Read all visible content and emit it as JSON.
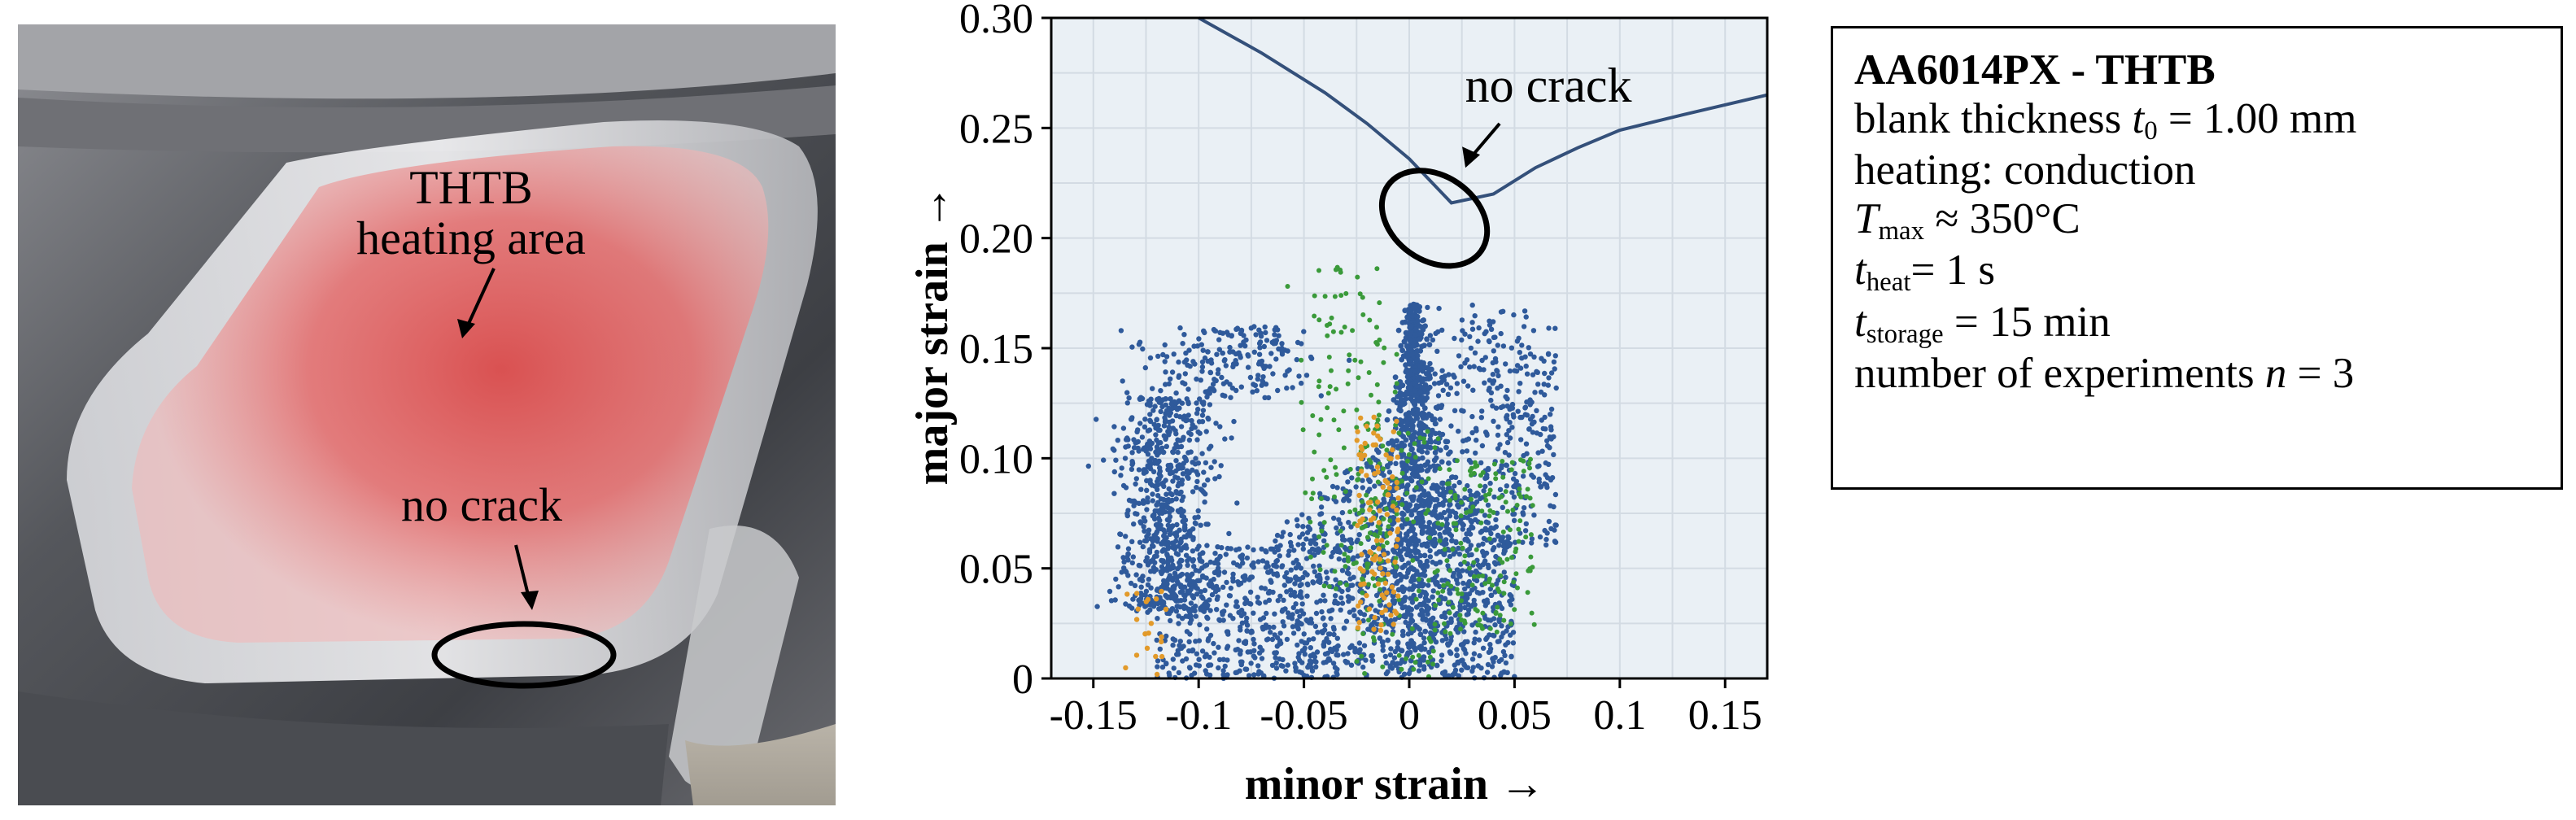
{
  "photo": {
    "heating_label_line1": "THTB",
    "heating_label_line2": "heating area",
    "crack_label": "no crack"
  },
  "chart_data": {
    "type": "scatter",
    "xlabel": "minor strain →",
    "ylabel": "major strain →",
    "xlim": [
      -0.17,
      0.17
    ],
    "ylim": [
      0,
      0.3
    ],
    "x_ticks": [
      "-0.15",
      "-0.1",
      "-0.05",
      "0",
      "0.05",
      "0.1",
      "0.15"
    ],
    "y_ticks": [
      "0",
      "0.05",
      "0.10",
      "0.15",
      "0.20",
      "0.25",
      "0.30"
    ],
    "grid": true,
    "forming_limit_curve": {
      "x": [
        -0.1,
        -0.07,
        -0.04,
        -0.02,
        0.0,
        0.02,
        0.04,
        0.06,
        0.08,
        0.1,
        0.13,
        0.17
      ],
      "y": [
        0.3,
        0.284,
        0.266,
        0.252,
        0.236,
        0.216,
        0.22,
        0.232,
        0.241,
        0.249,
        0.256,
        0.265
      ]
    },
    "scatter_series": [
      {
        "color": "#2f5a9b",
        "description": "majority points",
        "count": 3400
      },
      {
        "color": "#3a9a3a",
        "description": "green points",
        "count": 420
      },
      {
        "color": "#e29a2a",
        "description": "orange points",
        "count": 130
      }
    ],
    "annotation": "no crack",
    "annotation_ellipse_center": [
      0.012,
      0.209
    ]
  },
  "info": {
    "title": "AA6014PX - THTB",
    "thickness_prefix": "blank thickness ",
    "thickness_var": "t",
    "thickness_sub": "0",
    "thickness_value": " = 1.00 mm",
    "heating": "heating: conduction",
    "tmax_var": "T",
    "tmax_sub": "max",
    "tmax_value": " ≈ 350°C",
    "theat_var": "t",
    "theat_sub": "heat",
    "theat_value": "= 1 s",
    "tstorage_var": "t",
    "tstorage_sub": "storage",
    "tstorage_value": " = 15 min",
    "experiments_prefix": "number of experiments ",
    "experiments_var": "n",
    "experiments_value": " = 3"
  }
}
